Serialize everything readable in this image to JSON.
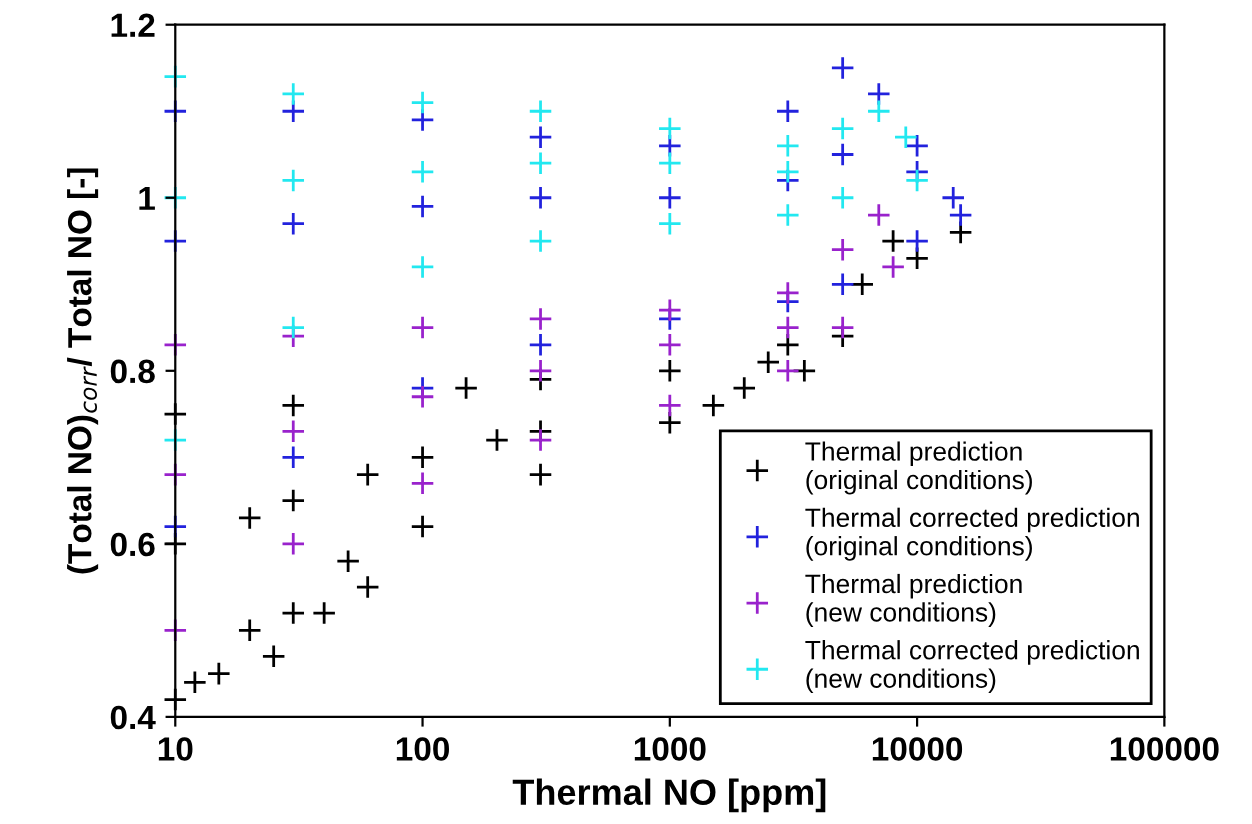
{
  "chart_data": {
    "type": "scatter",
    "xlabel": "Thermal NO [ppm]",
    "ylabel": "(Total NO)$_{corr}$/ Total NO [-]",
    "log": "x",
    "xlim": [
      10,
      100000
    ],
    "xticks": [
      10,
      100,
      1000,
      10000,
      100000
    ],
    "ylim": [
      0.4,
      1.2
    ],
    "yticks": [
      0.4,
      0.6,
      0.8,
      1,
      1.2
    ],
    "grid": false,
    "legend": "bottom right",
    "marker": "cross",
    "series": [
      {
        "name": "Thermal prediction\n(original conditions)",
        "color": "#000000",
        "x": [
          10,
          12,
          15,
          20,
          25,
          30,
          40,
          50,
          60,
          100,
          300,
          1000,
          3500,
          5000,
          10000,
          15000,
          10,
          30,
          150,
          300,
          1000,
          3000,
          6000,
          8000,
          10,
          20,
          30,
          60,
          100,
          200,
          300,
          1500,
          2000,
          2500
        ],
        "values": [
          0.42,
          0.44,
          0.45,
          0.5,
          0.47,
          0.52,
          0.52,
          0.58,
          0.55,
          0.62,
          0.68,
          0.74,
          0.8,
          0.84,
          0.93,
          0.96,
          0.75,
          0.76,
          0.78,
          0.79,
          0.8,
          0.83,
          0.9,
          0.95,
          0.6,
          0.63,
          0.65,
          0.68,
          0.7,
          0.72,
          0.73,
          0.76,
          0.78,
          0.81
        ]
      },
      {
        "name": "Thermal corrected prediction\n(original conditions)",
        "color": "#2222dd",
        "x": [
          10,
          30,
          100,
          300,
          1000,
          3000,
          5000,
          10000,
          15000,
          10,
          30,
          100,
          300,
          1000,
          3000,
          5000,
          7000,
          10000,
          14000,
          10,
          30,
          100,
          300,
          1000,
          3000,
          5000,
          10000
        ],
        "values": [
          0.62,
          0.7,
          0.78,
          0.83,
          0.86,
          0.88,
          0.9,
          0.95,
          0.98,
          1.1,
          1.1,
          1.09,
          1.07,
          1.06,
          1.1,
          1.15,
          1.12,
          1.06,
          1.0,
          0.95,
          0.97,
          0.99,
          1.0,
          1.0,
          1.02,
          1.05,
          1.03
        ]
      },
      {
        "name": "Thermal prediction\n(new conditions)",
        "color": "#9922cc",
        "x": [
          10,
          30,
          100,
          300,
          1000,
          3000,
          5000,
          8000,
          10,
          30,
          100,
          300,
          1000,
          3000,
          5000,
          7000,
          10,
          30,
          100,
          300,
          1000,
          3000
        ],
        "values": [
          0.5,
          0.6,
          0.67,
          0.72,
          0.76,
          0.8,
          0.85,
          0.92,
          0.83,
          0.84,
          0.85,
          0.86,
          0.87,
          0.89,
          0.94,
          0.98,
          0.68,
          0.73,
          0.77,
          0.8,
          0.83,
          0.85
        ]
      },
      {
        "name": "Thermal corrected prediction\n(new conditions)",
        "color": "#22e8f0",
        "x": [
          10,
          30,
          100,
          300,
          1000,
          3000,
          5000,
          10000,
          10,
          30,
          100,
          300,
          1000,
          3000,
          5000,
          7000,
          9000,
          10,
          30,
          100,
          300,
          1000,
          3000
        ],
        "values": [
          0.72,
          0.85,
          0.92,
          0.95,
          0.97,
          0.98,
          1.0,
          1.02,
          1.14,
          1.12,
          1.11,
          1.1,
          1.08,
          1.06,
          1.08,
          1.1,
          1.07,
          1.0,
          1.02,
          1.03,
          1.04,
          1.04,
          1.03
        ]
      }
    ]
  }
}
